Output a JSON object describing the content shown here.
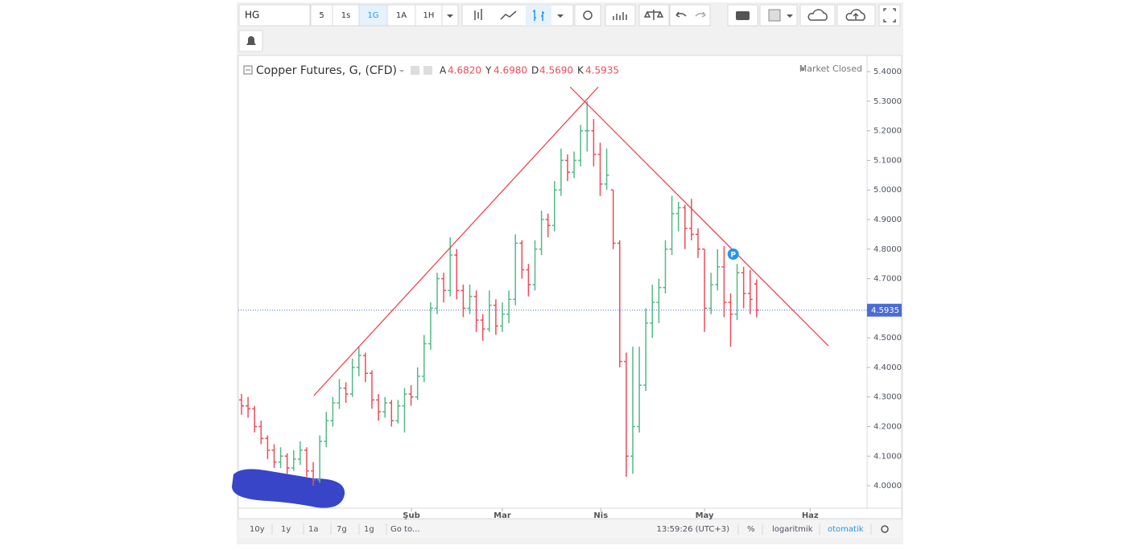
{
  "toolbar": {
    "symbol": "HG",
    "intervals": [
      "5",
      "1s",
      "1G",
      "1A",
      "1H"
    ],
    "active_interval": 2
  },
  "footer": {
    "ranges": [
      "10y",
      "1y",
      "1a",
      "7g",
      "1g"
    ],
    "goto": "Go to...",
    "time": "13:59:26 (UTC+3)",
    "percent": "%",
    "log": "logaritmik",
    "auto": "otomatik"
  },
  "chart_data": {
    "type": "ohlc",
    "title": "Copper Futures, G, (CFD)",
    "status": "Market Closed",
    "ohlc_keys": [
      "A",
      "Y",
      "D",
      "K"
    ],
    "last_bar_labels": [
      "4.6820",
      "4.6980",
      "4.5690",
      "4.5935"
    ],
    "x_is_index": true,
    "xlim": [
      -0.494,
      95.93
    ],
    "xticks": [
      {
        "value": 26.05,
        "label": "Şub"
      },
      {
        "value": 40.0,
        "label": "Mar"
      },
      {
        "value": 55.1,
        "label": "Nis"
      },
      {
        "value": 71.0,
        "label": "May"
      },
      {
        "value": 87.2,
        "label": "Haz"
      }
    ],
    "ylim": [
      3.924,
      5.452
    ],
    "yticks": [
      {
        "value": 4.0,
        "label": "4.0000"
      },
      {
        "value": 4.1,
        "label": "4.1000"
      },
      {
        "value": 4.2,
        "label": "4.2000"
      },
      {
        "value": 4.3,
        "label": "4.3000"
      },
      {
        "value": 4.4,
        "label": "4.4000"
      },
      {
        "value": 4.5,
        "label": "4.5000"
      },
      {
        "value": 4.6,
        "label": "4.6000"
      },
      {
        "value": 4.7,
        "label": "4.7000"
      },
      {
        "value": 4.8,
        "label": "4.8000"
      },
      {
        "value": 4.9,
        "label": "4.9000"
      },
      {
        "value": 5.0,
        "label": "5.0000"
      },
      {
        "value": 5.1,
        "label": "5.1000"
      },
      {
        "value": 5.2,
        "label": "5.2000"
      },
      {
        "value": 5.3,
        "label": "5.3000"
      },
      {
        "value": 5.4,
        "label": "5.4000"
      }
    ],
    "grid": false,
    "up_color": "#53b987",
    "down_color": "#eb4d5c",
    "last_price_color": "#4a6cd4",
    "trend_color": "#f23645",
    "bars": [
      [
        4.29,
        4.31,
        4.24,
        4.27
      ],
      [
        4.27,
        4.3,
        4.23,
        4.26
      ],
      [
        4.26,
        4.27,
        4.18,
        4.2
      ],
      [
        4.2,
        4.22,
        4.14,
        4.16
      ],
      [
        4.16,
        4.17,
        4.09,
        4.12
      ],
      [
        4.12,
        4.14,
        4.06,
        4.08
      ],
      [
        4.08,
        4.13,
        4.06,
        4.1
      ],
      [
        4.1,
        4.11,
        4.04,
        4.06
      ],
      [
        4.06,
        4.12,
        4.05,
        4.09
      ],
      [
        4.09,
        4.15,
        4.07,
        4.12
      ],
      [
        4.12,
        4.13,
        4.03,
        4.05
      ],
      [
        4.05,
        4.08,
        4.0,
        4.02
      ],
      [
        4.02,
        4.17,
        4.01,
        4.15
      ],
      [
        4.15,
        4.25,
        4.13,
        4.22
      ],
      [
        4.22,
        4.3,
        4.2,
        4.28
      ],
      [
        4.28,
        4.36,
        4.26,
        4.33
      ],
      [
        4.33,
        4.35,
        4.28,
        4.31
      ],
      [
        4.31,
        4.43,
        4.3,
        4.4
      ],
      [
        4.4,
        4.47,
        4.37,
        4.44
      ],
      [
        4.44,
        4.45,
        4.35,
        4.38
      ],
      [
        4.38,
        4.39,
        4.26,
        4.29
      ],
      [
        4.29,
        4.31,
        4.22,
        4.25
      ],
      [
        4.25,
        4.3,
        4.23,
        4.28
      ],
      [
        4.28,
        4.29,
        4.2,
        4.22
      ],
      [
        4.22,
        4.29,
        4.21,
        4.27
      ],
      [
        4.27,
        4.33,
        4.18,
        4.31
      ],
      [
        4.31,
        4.34,
        4.27,
        4.3
      ],
      [
        4.3,
        4.4,
        4.29,
        4.37
      ],
      [
        4.37,
        4.51,
        4.35,
        4.48
      ],
      [
        4.48,
        4.62,
        4.46,
        4.6
      ],
      [
        4.6,
        4.72,
        4.58,
        4.7
      ],
      [
        4.7,
        4.72,
        4.62,
        4.66
      ],
      [
        4.66,
        4.84,
        4.64,
        4.78
      ],
      [
        4.78,
        4.8,
        4.63,
        4.66
      ],
      [
        4.66,
        4.68,
        4.57,
        4.6
      ],
      [
        4.6,
        4.68,
        4.58,
        4.64
      ],
      [
        4.64,
        4.66,
        4.52,
        4.56
      ],
      [
        4.56,
        4.58,
        4.49,
        4.53
      ],
      [
        4.53,
        4.66,
        4.52,
        4.61
      ],
      [
        4.61,
        4.63,
        4.51,
        4.54
      ],
      [
        4.54,
        4.62,
        4.52,
        4.58
      ],
      [
        4.58,
        4.66,
        4.55,
        4.63
      ],
      [
        4.63,
        4.85,
        4.61,
        4.82
      ],
      [
        4.82,
        4.83,
        4.7,
        4.73
      ],
      [
        4.73,
        4.75,
        4.64,
        4.68
      ],
      [
        4.68,
        4.83,
        4.66,
        4.8
      ],
      [
        4.8,
        4.93,
        4.78,
        4.9
      ],
      [
        4.9,
        4.92,
        4.84,
        4.88
      ],
      [
        4.88,
        5.03,
        4.86,
        5.0
      ],
      [
        5.0,
        5.14,
        4.98,
        5.1
      ],
      [
        5.1,
        5.12,
        5.03,
        5.06
      ],
      [
        5.06,
        5.13,
        5.04,
        5.1
      ],
      [
        5.1,
        5.22,
        5.08,
        5.2
      ],
      [
        5.2,
        5.3,
        5.13,
        5.2
      ],
      [
        5.2,
        5.24,
        5.08,
        5.12
      ],
      [
        5.12,
        5.16,
        4.98,
        5.02
      ],
      [
        5.02,
        5.14,
        5.0,
        5.05
      ],
      [
        5.0,
        5.0,
        4.8,
        4.82
      ],
      [
        4.82,
        4.83,
        4.4,
        4.42
      ],
      [
        4.42,
        4.45,
        4.03,
        4.1
      ],
      [
        4.1,
        4.47,
        4.04,
        4.2
      ],
      [
        4.2,
        4.47,
        4.18,
        4.34
      ],
      [
        4.34,
        4.6,
        4.32,
        4.55
      ],
      [
        4.55,
        4.68,
        4.5,
        4.62
      ],
      [
        4.62,
        4.7,
        4.55,
        4.67
      ],
      [
        4.67,
        4.83,
        4.65,
        4.8
      ],
      [
        4.8,
        4.98,
        4.78,
        4.92
      ],
      [
        4.92,
        4.96,
        4.86,
        4.94
      ],
      [
        4.94,
        4.95,
        4.8,
        4.87
      ],
      [
        4.87,
        4.97,
        4.83,
        4.85
      ],
      [
        4.85,
        4.87,
        4.77,
        4.8
      ],
      [
        4.8,
        4.8,
        4.52,
        4.6
      ],
      [
        4.6,
        4.72,
        4.58,
        4.68
      ],
      [
        4.68,
        4.8,
        4.66,
        4.74
      ],
      [
        4.74,
        4.81,
        4.57,
        4.62
      ],
      [
        4.62,
        4.65,
        4.47,
        4.58
      ],
      [
        4.58,
        4.75,
        4.56,
        4.72
      ],
      [
        4.72,
        4.74,
        4.6,
        4.65
      ],
      [
        4.65,
        4.73,
        4.58,
        4.63
      ],
      [
        4.682,
        4.698,
        4.569,
        4.5935
      ]
    ],
    "trendlines": [
      {
        "x": [
          11.1,
          54.7
        ],
        "y": [
          4.305,
          5.348
        ]
      },
      {
        "x": [
          50.4,
          90.0
        ],
        "y": [
          5.348,
          4.473
        ]
      }
    ],
    "marker": {
      "label": "P",
      "x": 75.4,
      "y": 4.783,
      "color": "#2196f3"
    }
  }
}
